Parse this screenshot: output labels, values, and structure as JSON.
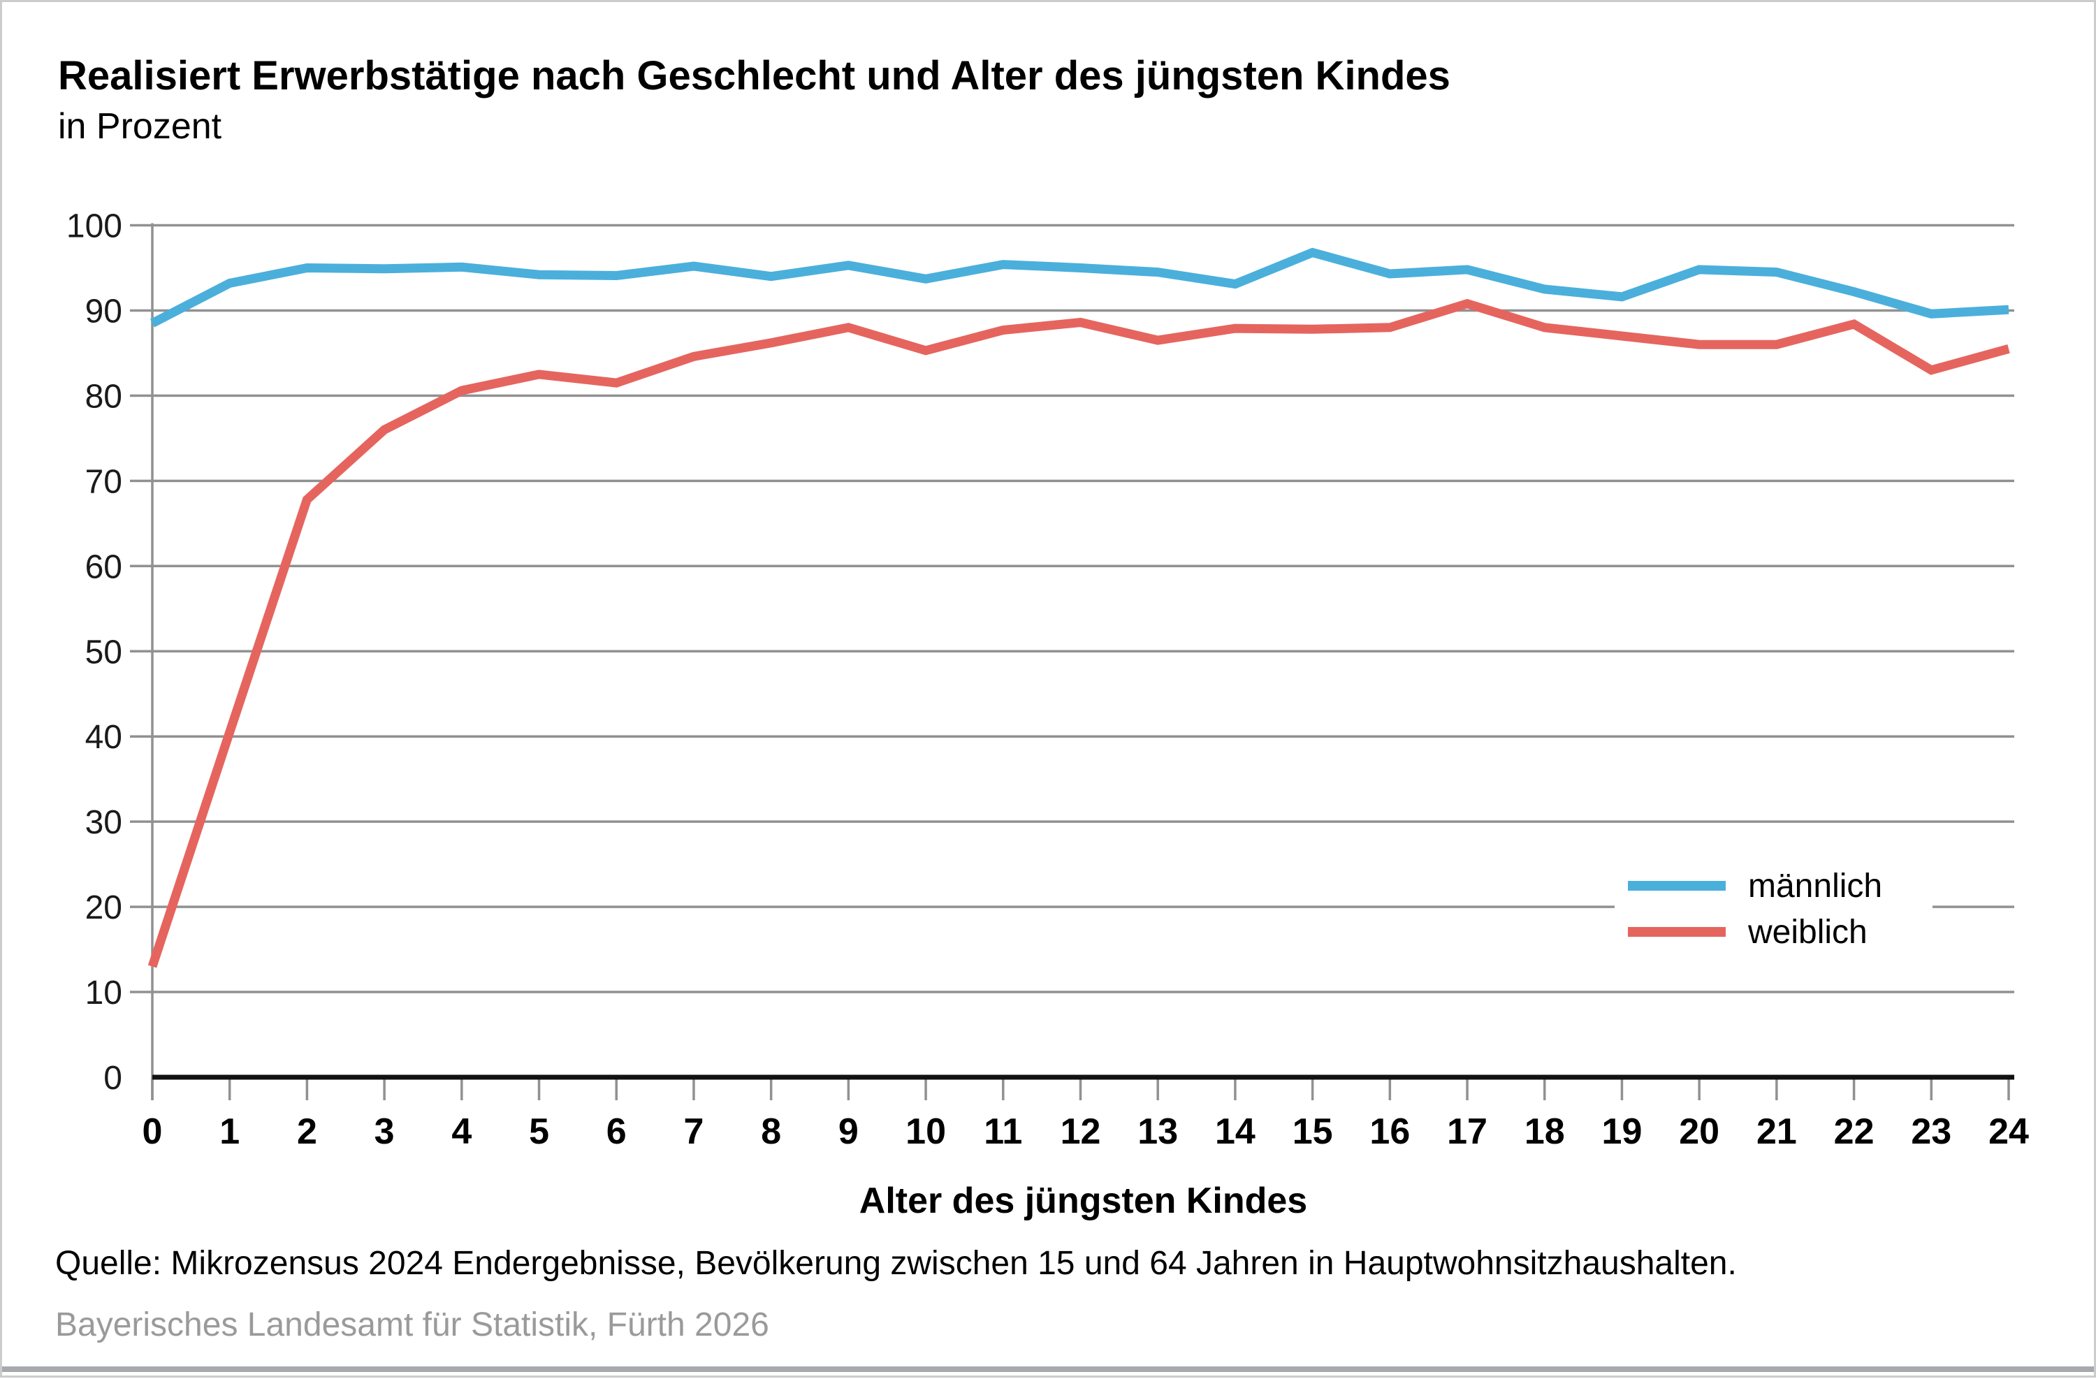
{
  "header": {
    "title": "Realisiert Erwerbstätige nach Geschlecht und Alter des jüngsten Kindes",
    "subtitle": "in Prozent"
  },
  "footer": {
    "source": "Quelle: Mikrozensus 2024 Endergebnisse, Bevölkerung zwischen 15 und 64 Jahren in Hauptwohnsitzhaushalten.",
    "publisher": "Bayerisches Landesamt für Statistik, Fürth 2026"
  },
  "colors": {
    "maennlich": "#4bafdb",
    "weiblich": "#e5655e",
    "grid": "#919191",
    "axis": "#111111",
    "publisher_gray": "#9a9a9a",
    "bottom_bar": "#a7a9ad"
  },
  "chart_data": {
    "type": "line",
    "title": "Realisiert Erwerbstätige nach Geschlecht und Alter des jüngsten Kindes",
    "subtitle": "in Prozent",
    "xlabel": "Alter des jüngsten Kindes",
    "ylabel": "",
    "x": [
      0,
      1,
      2,
      3,
      4,
      5,
      6,
      7,
      8,
      9,
      10,
      11,
      12,
      13,
      14,
      15,
      16,
      17,
      18,
      19,
      20,
      21,
      22,
      23,
      24
    ],
    "yticks": [
      0,
      10,
      20,
      30,
      40,
      50,
      60,
      70,
      80,
      90,
      100
    ],
    "ylim": [
      0,
      100
    ],
    "grid": true,
    "legend_position": "right-middle",
    "series": [
      {
        "name": "männlich",
        "color": "#4bafdb",
        "values": [
          88.5,
          93.2,
          95.0,
          94.9,
          95.1,
          94.2,
          94.1,
          95.2,
          94.0,
          95.3,
          93.7,
          95.4,
          95.0,
          94.5,
          93.1,
          96.8,
          94.3,
          94.8,
          92.5,
          91.6,
          94.8,
          94.5,
          92.2,
          89.6,
          90.1
        ]
      },
      {
        "name": "weiblich",
        "color": "#e5655e",
        "values": [
          13.0,
          40.5,
          67.8,
          76.0,
          80.6,
          82.5,
          81.5,
          84.6,
          86.2,
          88.0,
          85.3,
          87.7,
          88.6,
          86.5,
          87.9,
          87.8,
          88.0,
          90.8,
          88.0,
          87.0,
          86.0,
          86.0,
          88.4,
          83.0,
          85.5
        ]
      }
    ]
  }
}
